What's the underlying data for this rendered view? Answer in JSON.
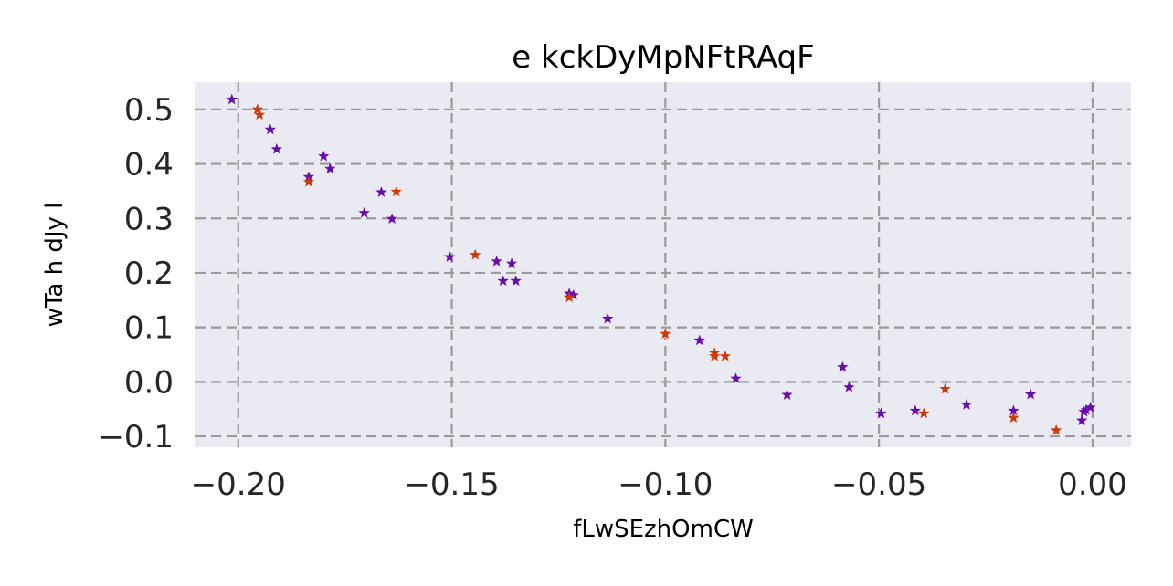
{
  "chart_data": {
    "type": "scatter",
    "title": "e kckDyMpNFtRAqF",
    "xlabel": "fLwSEzhOmCW",
    "ylabel": "wTa h dJy l",
    "xlim": [
      -0.21,
      0.009
    ],
    "ylim": [
      -0.12,
      0.55
    ],
    "xticks": [
      -0.2,
      -0.15,
      -0.1,
      -0.05,
      0.0
    ],
    "xtick_labels": [
      "−0.20",
      "−0.15",
      "−0.10",
      "−0.05",
      "0.00"
    ],
    "yticks": [
      -0.1,
      0.0,
      0.1,
      0.2,
      0.3,
      0.4,
      0.5
    ],
    "ytick_labels": [
      "−0.1",
      "0.0",
      "0.1",
      "0.2",
      "0.3",
      "0.4",
      "0.5"
    ],
    "grid": true,
    "background": "#eaeaf2",
    "marker": "star",
    "series": [
      {
        "color": "#6a0dad",
        "points": [
          [
            -0.2015,
            0.518
          ],
          [
            -0.1925,
            0.463
          ],
          [
            -0.191,
            0.427
          ],
          [
            -0.1835,
            0.376
          ],
          [
            -0.18,
            0.414
          ],
          [
            -0.1785,
            0.391
          ],
          [
            -0.1705,
            0.31
          ],
          [
            -0.1665,
            0.348
          ],
          [
            -0.164,
            0.299
          ],
          [
            -0.1505,
            0.229
          ],
          [
            -0.1395,
            0.221
          ],
          [
            -0.138,
            0.185
          ],
          [
            -0.136,
            0.217
          ],
          [
            -0.135,
            0.185
          ],
          [
            -0.1225,
            0.162
          ],
          [
            -0.1215,
            0.159
          ],
          [
            -0.1135,
            0.116
          ],
          [
            -0.092,
            0.076
          ],
          [
            -0.0835,
            0.006
          ],
          [
            -0.0715,
            -0.024
          ],
          [
            -0.0585,
            0.027
          ],
          [
            -0.057,
            -0.01
          ],
          [
            -0.0495,
            -0.058
          ],
          [
            -0.0415,
            -0.053
          ],
          [
            -0.0295,
            -0.042
          ],
          [
            -0.0185,
            -0.053
          ],
          [
            -0.0145,
            -0.023
          ],
          [
            -0.0025,
            -0.071
          ],
          [
            -0.002,
            -0.055
          ],
          [
            -0.0015,
            -0.052
          ],
          [
            -0.0005,
            -0.047
          ]
        ]
      },
      {
        "color": "#cc3a08",
        "points": [
          [
            -0.1955,
            0.5
          ],
          [
            -0.195,
            0.49
          ],
          [
            -0.1835,
            0.367
          ],
          [
            -0.163,
            0.349
          ],
          [
            -0.1445,
            0.233
          ],
          [
            -0.1225,
            0.155
          ],
          [
            -0.1,
            0.088
          ],
          [
            -0.0885,
            0.053
          ],
          [
            -0.0885,
            0.047
          ],
          [
            -0.086,
            0.047
          ],
          [
            -0.0395,
            -0.058
          ],
          [
            -0.0345,
            -0.013
          ],
          [
            -0.0185,
            -0.066
          ],
          [
            -0.0085,
            -0.089
          ]
        ]
      }
    ]
  }
}
